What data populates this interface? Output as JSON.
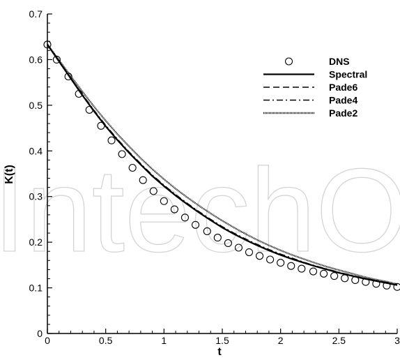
{
  "watermark": "IntechOpen",
  "chart_data": {
    "type": "line",
    "title": "",
    "xlabel": "t",
    "ylabel": "K(t)",
    "xlim": [
      0,
      3
    ],
    "ylim": [
      0,
      0.7
    ],
    "xticks": [
      "0",
      "0.5",
      "1",
      "1.5",
      "2",
      "2.5",
      "3"
    ],
    "yticks": [
      "0",
      "0.1",
      "0.2",
      "0.3",
      "0.4",
      "0.5",
      "0.6",
      "0.7"
    ],
    "grid": false,
    "legend_position": "top-right",
    "x": [
      0,
      0.1,
      0.2,
      0.3,
      0.4,
      0.5,
      0.6,
      0.7,
      0.8,
      0.9,
      1.0,
      1.1,
      1.2,
      1.3,
      1.4,
      1.5,
      1.6,
      1.7,
      1.8,
      1.9,
      2.0,
      2.1,
      2.2,
      2.3,
      2.4,
      2.5,
      2.6,
      2.7,
      2.8,
      2.9,
      3.0
    ],
    "series": [
      {
        "name": "DNS",
        "style": "circle-markers",
        "x": [
          0,
          0.08,
          0.18,
          0.27,
          0.36,
          0.46,
          0.55,
          0.64,
          0.73,
          0.82,
          0.91,
          1.0,
          1.09,
          1.18,
          1.27,
          1.37,
          1.46,
          1.55,
          1.64,
          1.73,
          1.82,
          1.91,
          2.0,
          2.09,
          2.18,
          2.28,
          2.37,
          2.46,
          2.55,
          2.64,
          2.73,
          2.82,
          2.91,
          3.0
        ],
        "values": [
          0.633,
          0.6,
          0.563,
          0.525,
          0.49,
          0.455,
          0.423,
          0.393,
          0.363,
          0.336,
          0.312,
          0.29,
          0.272,
          0.254,
          0.238,
          0.224,
          0.21,
          0.198,
          0.188,
          0.178,
          0.17,
          0.162,
          0.155,
          0.148,
          0.142,
          0.136,
          0.131,
          0.126,
          0.121,
          0.117,
          0.113,
          0.109,
          0.105,
          0.102
        ]
      },
      {
        "name": "Spectral",
        "style": "solid",
        "values": [
          0.633,
          0.596,
          0.559,
          0.522,
          0.487,
          0.454,
          0.424,
          0.396,
          0.37,
          0.345,
          0.323,
          0.302,
          0.283,
          0.265,
          0.248,
          0.232,
          0.218,
          0.205,
          0.193,
          0.182,
          0.172,
          0.163,
          0.155,
          0.147,
          0.14,
          0.133,
          0.127,
          0.121,
          0.116,
          0.111,
          0.106
        ]
      },
      {
        "name": "Pade6",
        "style": "dashed",
        "values": [
          0.633,
          0.596,
          0.559,
          0.522,
          0.487,
          0.454,
          0.424,
          0.396,
          0.37,
          0.345,
          0.323,
          0.302,
          0.283,
          0.265,
          0.248,
          0.232,
          0.218,
          0.205,
          0.193,
          0.182,
          0.172,
          0.163,
          0.155,
          0.147,
          0.14,
          0.133,
          0.127,
          0.121,
          0.116,
          0.111,
          0.106
        ]
      },
      {
        "name": "Pade4",
        "style": "dash-dot",
        "values": [
          0.633,
          0.597,
          0.56,
          0.524,
          0.489,
          0.456,
          0.426,
          0.398,
          0.372,
          0.347,
          0.325,
          0.304,
          0.285,
          0.267,
          0.25,
          0.234,
          0.22,
          0.207,
          0.195,
          0.184,
          0.174,
          0.165,
          0.156,
          0.148,
          0.141,
          0.134,
          0.128,
          0.122,
          0.117,
          0.112,
          0.107
        ]
      },
      {
        "name": "Pade2",
        "style": "dotted",
        "values": [
          0.633,
          0.599,
          0.564,
          0.53,
          0.497,
          0.466,
          0.437,
          0.41,
          0.384,
          0.36,
          0.338,
          0.317,
          0.298,
          0.28,
          0.263,
          0.247,
          0.232,
          0.218,
          0.205,
          0.193,
          0.182,
          0.172,
          0.163,
          0.154,
          0.146,
          0.139,
          0.132,
          0.125,
          0.119,
          0.114,
          0.108
        ]
      }
    ]
  }
}
